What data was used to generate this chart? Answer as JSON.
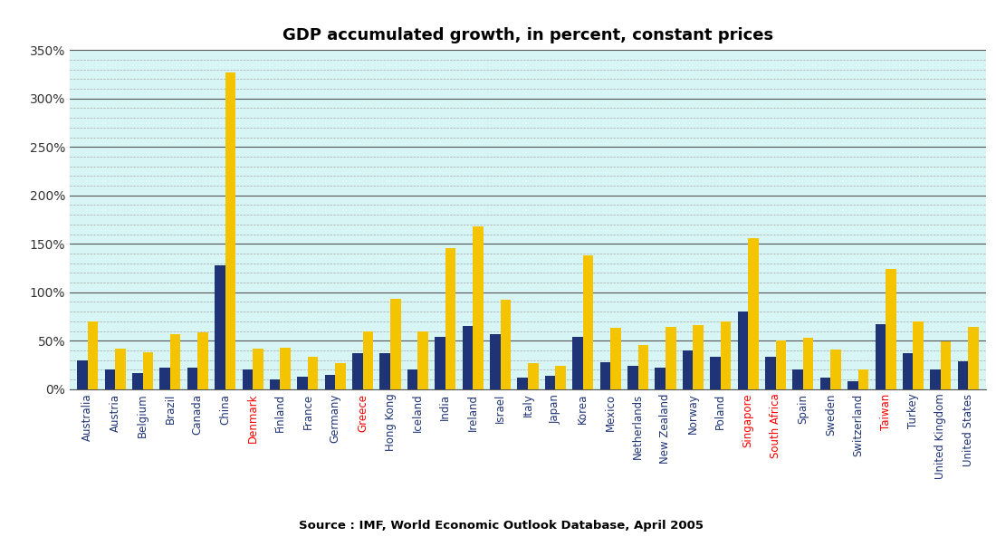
{
  "title": "GDP accumulated growth, in percent, constant prices",
  "categories": [
    "Australia",
    "Austria",
    "Belgium",
    "Brazil",
    "Canada",
    "China",
    "Denmark",
    "Finland",
    "France",
    "Germany",
    "Greece",
    "Hong Kong",
    "Iceland",
    "India",
    "Ireland",
    "Israel",
    "Italy",
    "Japan",
    "Korea",
    "Mexico",
    "Netherlands",
    "New Zealand",
    "Norway",
    "Poland",
    "Singapore",
    "South Africa",
    "Spain",
    "Sweden",
    "Switzerland",
    "Taiwan",
    "Turkey",
    "United Kingdom",
    "United States"
  ],
  "values_1990_1998": [
    30,
    20,
    17,
    22,
    22,
    128,
    20,
    10,
    13,
    15,
    37,
    37,
    20,
    54,
    65,
    57,
    12,
    14,
    54,
    28,
    24,
    22,
    40,
    33,
    80,
    33,
    20,
    12,
    8,
    67,
    37,
    20,
    29
  ],
  "values_1990_2006": [
    70,
    42,
    38,
    57,
    59,
    327,
    42,
    43,
    33,
    27,
    60,
    93,
    60,
    146,
    168,
    92,
    27,
    24,
    138,
    63,
    46,
    64,
    66,
    70,
    156,
    50,
    53,
    41,
    20,
    124,
    70,
    49,
    64
  ],
  "bar_color_1998": "#1F3476",
  "bar_color_2006": "#F5C400",
  "background_color": "#FFFFFF",
  "plot_bg_color": "#D8F5F5",
  "red_labels": [
    "Denmark",
    "Greece",
    "Singapore",
    "South Africa",
    "Taiwan"
  ],
  "blue_labels_color": "#1F3476",
  "source_text": "Source : IMF, World Economic Outlook Database, April 2005",
  "ylim": [
    0,
    350
  ],
  "yticks_major": [
    0,
    50,
    100,
    150,
    200,
    250,
    300,
    350
  ],
  "ytick_labels": [
    "0%",
    "50%",
    "100%",
    "150%",
    "200%",
    "250%",
    "300%",
    "350%"
  ],
  "yticks_minor": [
    10,
    20,
    30,
    40,
    60,
    70,
    80,
    90,
    110,
    120,
    130,
    140,
    160,
    170,
    180,
    190,
    210,
    220,
    230,
    240,
    260,
    270,
    280,
    290,
    310,
    320,
    330,
    340
  ]
}
